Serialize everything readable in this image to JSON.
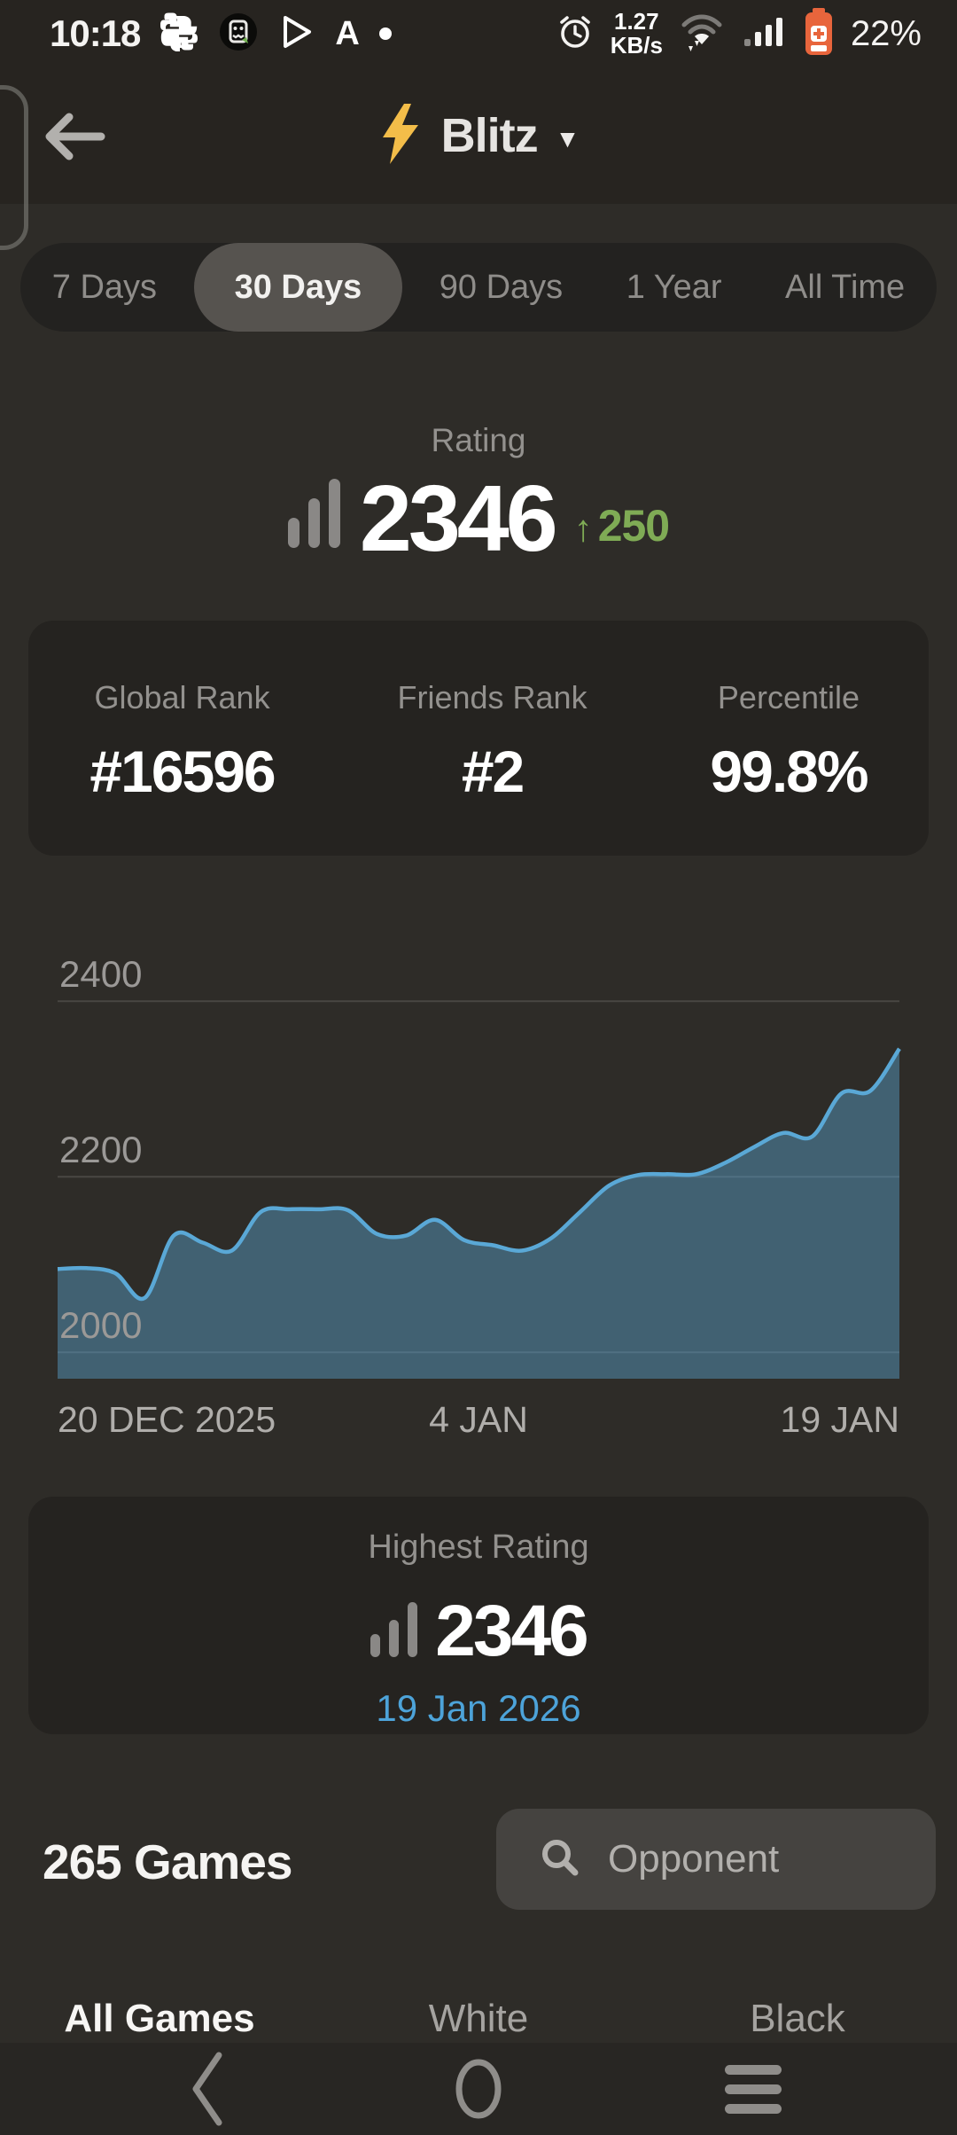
{
  "status_bar": {
    "time": "10:18",
    "network_speed_value": "1.27",
    "network_speed_unit": "KB/s",
    "battery_percent": "22%",
    "left_icons": [
      "python-icon",
      "robot-app-icon",
      "play-store-icon",
      "letter-a-icon",
      "notification-dot"
    ],
    "right_icons": [
      "alarm-icon",
      "wifi-icon",
      "signal-icon",
      "battery-icon"
    ],
    "battery_color": "#e8653c"
  },
  "header": {
    "title": "Blitz",
    "title_icon": "lightning-bolt-icon",
    "bolt_color": "#f3bd49"
  },
  "time_filters": {
    "items": [
      {
        "label": "7 Days",
        "selected": false
      },
      {
        "label": "30 Days",
        "selected": true
      },
      {
        "label": "90 Days",
        "selected": false
      },
      {
        "label": "1 Year",
        "selected": false
      },
      {
        "label": "All Time",
        "selected": false
      }
    ]
  },
  "rating_section": {
    "label": "Rating",
    "value": "2346",
    "change_arrow": "↑",
    "change_value": "250",
    "change_color": "#7fab55"
  },
  "stats_card": {
    "items": [
      {
        "label": "Global Rank",
        "value": "#16596"
      },
      {
        "label": "Friends Rank",
        "value": "#2"
      },
      {
        "label": "Percentile",
        "value": "99.8%"
      }
    ]
  },
  "chart_data": {
    "type": "area",
    "title": "Blitz rating over last 30 days",
    "x_start": "20 DEC 2025",
    "x_mid": "4 JAN",
    "x_end": "19 JAN",
    "y_tick_labels": [
      "2400",
      "2200",
      "2000"
    ],
    "y_ticks": [
      2400,
      2200,
      2000
    ],
    "ylim": [
      1970,
      2470
    ],
    "grid": true,
    "legend": "none",
    "values": [
      2095,
      2096,
      2090,
      2062,
      2133,
      2125,
      2116,
      2160,
      2163,
      2163,
      2162,
      2135,
      2133,
      2151,
      2128,
      2122,
      2116,
      2130,
      2160,
      2190,
      2202,
      2203,
      2203,
      2216,
      2234,
      2250,
      2246,
      2295,
      2298,
      2346
    ],
    "line_color": "#5aa8d6",
    "fill_opacity": 0.43,
    "grid_color": "rgba(255,255,255,0.13)"
  },
  "highest_rating_card": {
    "label": "Highest Rating",
    "value": "2346",
    "date": "19 Jan 2026",
    "date_color": "#4da3d9"
  },
  "games_section": {
    "count_label": "265 Games",
    "search_placeholder": "Opponent"
  },
  "games_tabs": {
    "items": [
      {
        "label": "All Games",
        "selected": true
      },
      {
        "label": "White",
        "selected": false
      },
      {
        "label": "Black",
        "selected": false
      }
    ]
  },
  "nav_bar": {
    "icons": [
      "nav-back-icon",
      "nav-home-icon",
      "nav-menu-icon"
    ]
  }
}
